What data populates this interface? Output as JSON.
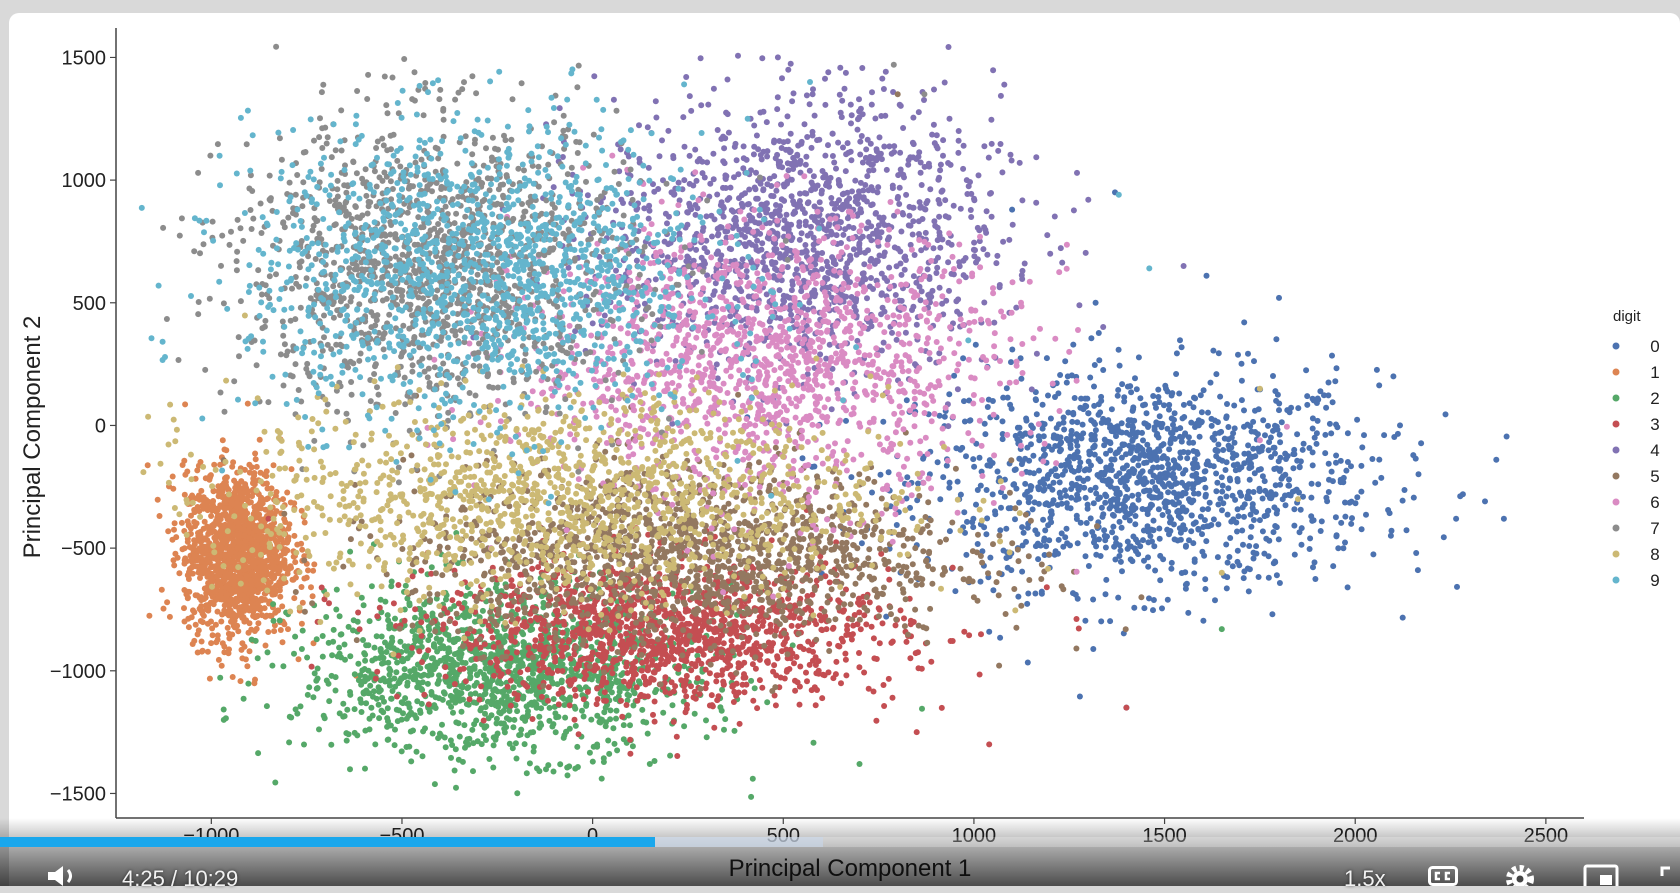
{
  "chart_data": {
    "type": "scatter",
    "xlabel": "Principal Component 1",
    "ylabel": "Principal Component 2",
    "xlim": [
      -1250,
      2600
    ],
    "ylim": [
      -1600,
      1620
    ],
    "xticks": [
      -1000,
      -500,
      0,
      500,
      1000,
      1500,
      2000,
      2500
    ],
    "yticks": [
      -1500,
      -1000,
      -500,
      0,
      500,
      1000,
      1500
    ],
    "grid": false,
    "legend_title": "digit",
    "legend_position": "right",
    "series": [
      {
        "name": "0",
        "color": "#4c72b0",
        "center": [
          1450,
          -220
        ],
        "spread": [
          300,
          220
        ],
        "points": [
          [
            2370,
            -140
          ],
          [
            2390,
            -380
          ],
          [
            2160,
            -520
          ],
          [
            1980,
            -660
          ],
          [
            1400,
            -1150
          ],
          [
            1800,
            520
          ],
          [
            1610,
            610
          ],
          [
            1100,
            880
          ],
          [
            1370,
            950
          ],
          [
            2100,
            200
          ]
        ]
      },
      {
        "name": "1",
        "color": "#dd8452",
        "center": [
          -930,
          -520
        ],
        "spread": [
          70,
          170
        ],
        "points": [
          [
            -1060,
            -320
          ],
          [
            -900,
            -920
          ],
          [
            -620,
            -1020
          ],
          [
            -970,
            -60
          ]
        ]
      },
      {
        "name": "2",
        "color": "#55a868",
        "center": [
          -250,
          -1000
        ],
        "spread": [
          260,
          170
        ],
        "points": [
          [
            150,
            -1380
          ],
          [
            420,
            -1440
          ],
          [
            700,
            -1380
          ],
          [
            -480,
            -1150
          ],
          [
            1650,
            -830
          ]
        ]
      },
      {
        "name": "3",
        "color": "#c44e52",
        "center": [
          200,
          -840
        ],
        "spread": [
          300,
          150
        ],
        "points": [
          [
            1040,
            -1300
          ],
          [
            1400,
            -1150
          ],
          [
            850,
            -1250
          ],
          [
            -850,
            -380
          ]
        ]
      },
      {
        "name": "4",
        "color": "#8172b3",
        "center": [
          550,
          780
        ],
        "spread": [
          260,
          280
        ],
        "points": [
          [
            1300,
            920
          ],
          [
            1120,
            1070
          ],
          [
            960,
            1200
          ],
          [
            1550,
            650
          ],
          [
            1200,
            700
          ]
        ]
      },
      {
        "name": "5",
        "color": "#937860",
        "center": [
          250,
          -520
        ],
        "spread": [
          360,
          180
        ],
        "points": [
          [
            800,
            1350
          ],
          [
            1000,
            -700
          ]
        ]
      },
      {
        "name": "6",
        "color": "#da8bc3",
        "center": [
          450,
          250
        ],
        "spread": [
          320,
          280
        ],
        "points": [
          [
            1250,
            300
          ],
          [
            1050,
            560
          ],
          [
            1750,
            -60
          ]
        ]
      },
      {
        "name": "7",
        "color": "#8c8c8c",
        "center": [
          -420,
          650
        ],
        "spread": [
          260,
          300
        ],
        "points": [
          [
            -650,
            800
          ],
          [
            -750,
            600
          ],
          [
            790,
            1470
          ],
          [
            870,
            1350
          ],
          [
            -940,
            180
          ]
        ]
      },
      {
        "name": "8",
        "color": "#ccb974",
        "center": [
          -80,
          -300
        ],
        "spread": [
          420,
          210
        ],
        "points": [
          [
            1750,
            150
          ],
          [
            1850,
            -300
          ],
          [
            1650,
            -600
          ]
        ]
      },
      {
        "name": "9",
        "color": "#64b5cd",
        "center": [
          -300,
          620
        ],
        "spread": [
          300,
          300
        ],
        "points": [
          [
            240,
            1390
          ],
          [
            570,
            1400
          ],
          [
            1380,
            940
          ],
          [
            1460,
            640
          ],
          [
            -460,
            -20
          ]
        ]
      }
    ]
  },
  "player": {
    "time_current": "4:25",
    "time_separator": "/",
    "time_total": "10:29",
    "speed": "1.5x",
    "progress_fraction": 0.39,
    "buffered_fraction": 0.49
  }
}
